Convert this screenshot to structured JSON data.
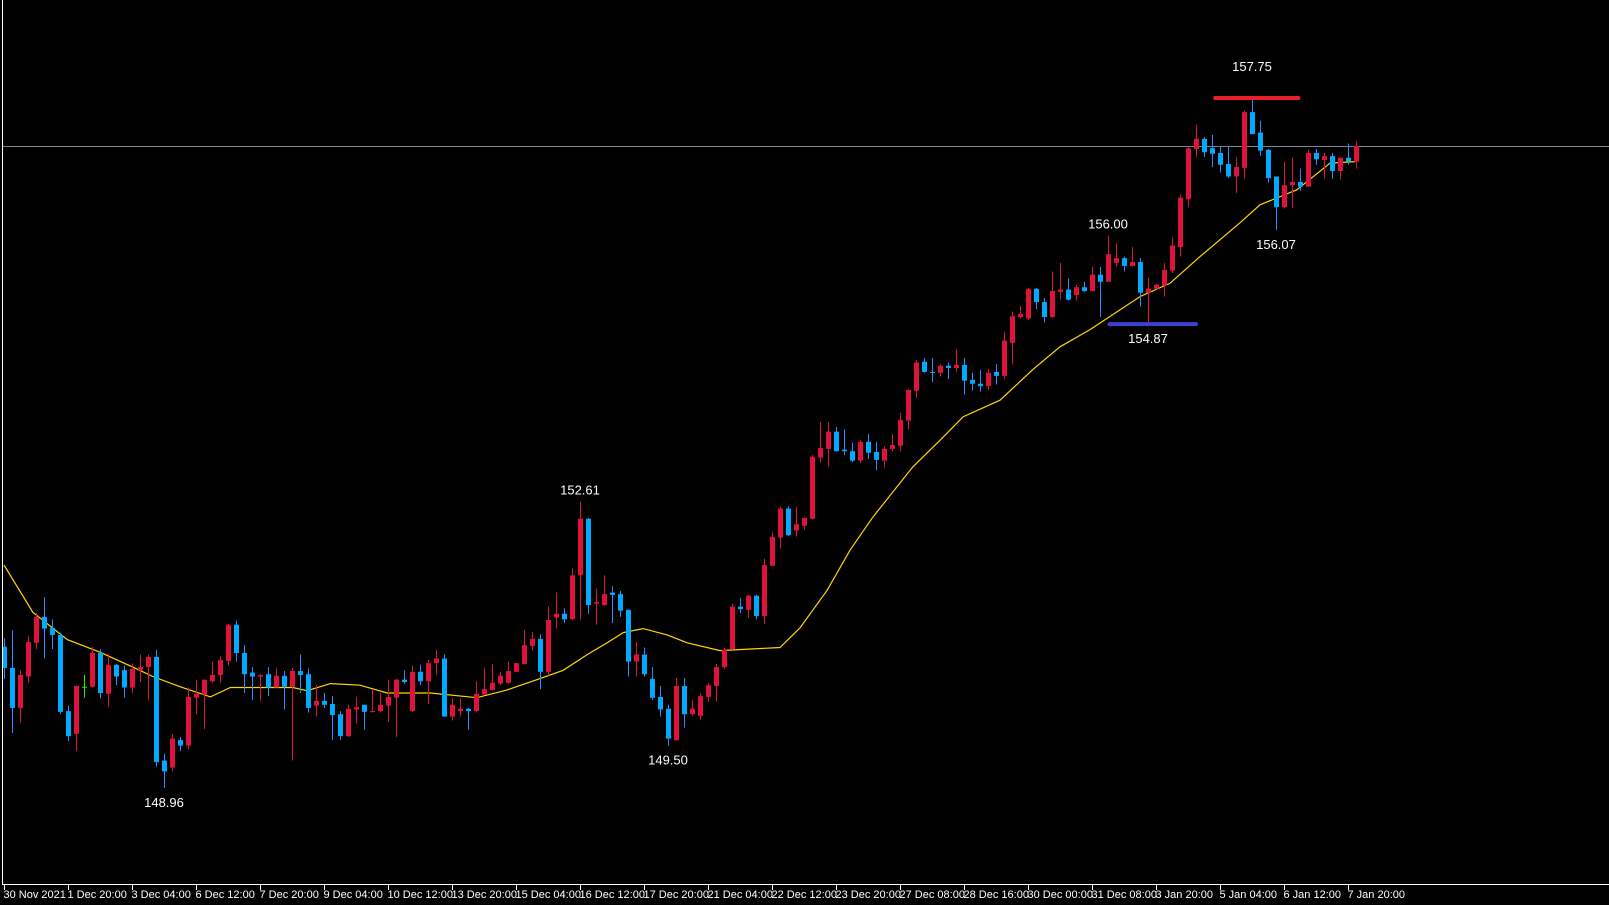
{
  "chart_data": {
    "type": "candlestick",
    "title": "",
    "xlabel": "",
    "ylabel": "",
    "ylim": [
      148.96,
      157.75
    ],
    "grid": false,
    "legend": "none",
    "colors": {
      "background": "#000000",
      "bull_body": "#dc143c",
      "bull_wick": "#dc143c",
      "bear_body": "#00aaff",
      "bear_wick": "#1e90ff",
      "doji": "#00ff00",
      "moving_average": "#ffd700",
      "bid_line": "#778899",
      "axis": "#ffffff",
      "text": "#ffffff",
      "high_marker": "#e8202a",
      "low_marker": "#3c3fd0"
    },
    "x_tick_labels": [
      "30 Nov 2021",
      "1 Dec 20:00",
      "3 Dec 04:00",
      "6 Dec 12:00",
      "7 Dec 20:00",
      "9 Dec 04:00",
      "10 Dec 12:00",
      "13 Dec 20:00",
      "15 Dec 04:00",
      "16 Dec 12:00",
      "17 Dec 20:00",
      "21 Dec 04:00",
      "22 Dec 12:00",
      "23 Dec 20:00",
      "27 Dec 08:00",
      "28 Dec 16:00",
      "30 Dec 00:00",
      "31 Dec 08:00",
      "3 Jan 20:00",
      "5 Jan 04:00",
      "6 Jan 12:00",
      "7 Jan 20:00"
    ],
    "x_tick_every_bars": 8,
    "bid_price": 157.14,
    "ohlc_fields": [
      "open",
      "high",
      "low",
      "close"
    ],
    "candles": [
      [
        150.76,
        150.87,
        150.35,
        150.49
      ],
      [
        150.49,
        150.97,
        149.66,
        149.98
      ],
      [
        149.98,
        150.46,
        149.79,
        150.4
      ],
      [
        150.38,
        150.9,
        150.3,
        150.82
      ],
      [
        150.81,
        151.19,
        150.73,
        151.14
      ],
      [
        151.14,
        151.39,
        150.61,
        150.99
      ],
      [
        151.0,
        151.11,
        150.73,
        150.91
      ],
      [
        150.91,
        150.94,
        149.9,
        149.93
      ],
      [
        149.94,
        150.01,
        149.56,
        149.62
      ],
      [
        149.65,
        150.27,
        149.43,
        150.26
      ],
      [
        150.25,
        150.4,
        150.11,
        150.25
      ],
      [
        150.25,
        150.76,
        150.24,
        150.68
      ],
      [
        150.68,
        150.73,
        150.1,
        150.17
      ],
      [
        150.16,
        150.67,
        149.99,
        150.53
      ],
      [
        150.53,
        150.54,
        150.27,
        150.38
      ],
      [
        150.46,
        150.52,
        150.11,
        150.24
      ],
      [
        150.24,
        150.55,
        150.17,
        150.48
      ],
      [
        150.46,
        150.66,
        150.31,
        150.5
      ],
      [
        150.5,
        150.66,
        150.08,
        150.63
      ],
      [
        150.63,
        150.72,
        149.23,
        149.29
      ],
      [
        149.31,
        149.4,
        148.96,
        149.17
      ],
      [
        149.22,
        149.65,
        149.17,
        149.59
      ],
      [
        149.57,
        149.61,
        149.43,
        149.5
      ],
      [
        149.5,
        150.24,
        149.45,
        150.12
      ],
      [
        150.11,
        150.34,
        149.9,
        150.16
      ],
      [
        150.15,
        150.34,
        149.71,
        150.34
      ],
      [
        150.32,
        150.57,
        150.3,
        150.4
      ],
      [
        150.4,
        150.64,
        150.3,
        150.59
      ],
      [
        150.58,
        151.05,
        150.52,
        151.04
      ],
      [
        151.04,
        151.09,
        150.57,
        150.68
      ],
      [
        150.68,
        150.78,
        150.17,
        150.41
      ],
      [
        150.43,
        150.5,
        150.08,
        150.38
      ],
      [
        150.38,
        150.41,
        150.07,
        150.4
      ],
      [
        150.41,
        150.5,
        150.13,
        150.24
      ],
      [
        150.24,
        150.49,
        150.24,
        150.39
      ],
      [
        150.39,
        150.45,
        149.96,
        150.25
      ],
      [
        150.25,
        150.49,
        149.31,
        150.45
      ],
      [
        150.45,
        150.66,
        150.17,
        150.4
      ],
      [
        150.41,
        150.48,
        149.92,
        149.98
      ],
      [
        150.01,
        150.27,
        149.87,
        150.07
      ],
      [
        150.07,
        150.17,
        149.98,
        150.02
      ],
      [
        150.03,
        150.13,
        149.57,
        149.89
      ],
      [
        149.9,
        149.94,
        149.57,
        149.62
      ],
      [
        149.62,
        150.02,
        149.61,
        149.97
      ],
      [
        149.96,
        150.12,
        149.78,
        149.99
      ],
      [
        150.02,
        150.02,
        149.7,
        149.93
      ],
      [
        149.93,
        150.22,
        149.92,
        149.94
      ],
      [
        149.94,
        150.17,
        149.92,
        150.02
      ],
      [
        150.01,
        150.34,
        149.8,
        150.12
      ],
      [
        150.11,
        150.35,
        149.61,
        150.34
      ],
      [
        150.34,
        150.46,
        150.29,
        150.31
      ],
      [
        149.94,
        150.52,
        149.93,
        150.44
      ],
      [
        150.44,
        150.53,
        150.27,
        150.32
      ],
      [
        150.32,
        150.59,
        150.03,
        150.55
      ],
      [
        150.55,
        150.72,
        150.4,
        150.61
      ],
      [
        150.61,
        150.66,
        149.87,
        149.87
      ],
      [
        149.87,
        150.1,
        149.82,
        150.02
      ],
      [
        149.94,
        150.1,
        149.87,
        149.97
      ],
      [
        149.97,
        149.98,
        149.7,
        149.94
      ],
      [
        149.94,
        150.32,
        149.92,
        150.16
      ],
      [
        150.15,
        150.49,
        150.15,
        150.22
      ],
      [
        150.21,
        150.54,
        150.2,
        150.3
      ],
      [
        150.29,
        150.44,
        150.27,
        150.39
      ],
      [
        150.3,
        150.57,
        150.29,
        150.45
      ],
      [
        150.44,
        150.55,
        150.44,
        150.55
      ],
      [
        150.54,
        150.97,
        150.53,
        150.78
      ],
      [
        150.77,
        150.95,
        150.71,
        150.86
      ],
      [
        150.86,
        150.92,
        150.22,
        150.44
      ],
      [
        150.44,
        151.27,
        150.39,
        151.1
      ],
      [
        151.13,
        151.45,
        150.99,
        151.18
      ],
      [
        151.18,
        151.25,
        151.06,
        151.11
      ],
      [
        151.11,
        151.76,
        151.1,
        151.67
      ],
      [
        151.67,
        152.61,
        151.1,
        152.39
      ],
      [
        152.39,
        152.4,
        151.18,
        151.29
      ],
      [
        151.31,
        151.5,
        151.04,
        151.33
      ],
      [
        151.29,
        151.67,
        151.28,
        151.43
      ],
      [
        151.45,
        151.53,
        151.06,
        151.42
      ],
      [
        151.43,
        151.47,
        151.14,
        151.22
      ],
      [
        151.23,
        151.23,
        150.38,
        150.57
      ],
      [
        150.57,
        150.82,
        150.38,
        150.66
      ],
      [
        150.66,
        150.75,
        150.38,
        150.41
      ],
      [
        150.35,
        150.5,
        150.08,
        150.11
      ],
      [
        150.12,
        150.26,
        149.87,
        149.96
      ],
      [
        149.97,
        150.02,
        149.5,
        149.59
      ],
      [
        149.57,
        150.36,
        149.56,
        150.26
      ],
      [
        150.26,
        150.36,
        149.73,
        149.9
      ],
      [
        149.9,
        150.08,
        149.88,
        149.97
      ],
      [
        149.88,
        150.17,
        149.83,
        150.13
      ],
      [
        150.12,
        150.3,
        150.06,
        150.27
      ],
      [
        150.26,
        150.54,
        150.06,
        150.5
      ],
      [
        150.5,
        150.75,
        150.47,
        150.72
      ],
      [
        150.73,
        151.31,
        150.72,
        151.27
      ],
      [
        151.27,
        151.38,
        151.19,
        151.24
      ],
      [
        151.23,
        151.42,
        151.13,
        151.41
      ],
      [
        151.41,
        151.42,
        151.11,
        151.15
      ],
      [
        151.15,
        151.88,
        151.05,
        151.8
      ],
      [
        151.79,
        152.22,
        151.79,
        152.16
      ],
      [
        152.15,
        152.55,
        152.01,
        152.52
      ],
      [
        152.52,
        152.55,
        152.17,
        152.18
      ],
      [
        152.24,
        152.54,
        152.16,
        152.32
      ],
      [
        152.3,
        152.41,
        152.25,
        152.4
      ],
      [
        152.39,
        153.2,
        152.38,
        153.18
      ],
      [
        153.17,
        153.62,
        153.11,
        153.29
      ],
      [
        153.28,
        153.62,
        153.05,
        153.5
      ],
      [
        153.5,
        153.56,
        153.25,
        153.25
      ],
      [
        153.27,
        153.53,
        153.2,
        153.25
      ],
      [
        153.25,
        153.36,
        153.11,
        153.13
      ],
      [
        153.13,
        153.39,
        153.1,
        153.37
      ],
      [
        153.37,
        153.47,
        153.15,
        153.23
      ],
      [
        153.24,
        153.37,
        153.01,
        153.14
      ],
      [
        153.13,
        153.31,
        153.04,
        153.28
      ],
      [
        153.28,
        153.47,
        153.25,
        153.33
      ],
      [
        153.32,
        153.74,
        153.25,
        153.65
      ],
      [
        153.64,
        154.04,
        153.53,
        154.03
      ],
      [
        154.02,
        154.41,
        153.93,
        154.38
      ],
      [
        154.39,
        154.44,
        154.25,
        154.26
      ],
      [
        154.26,
        154.44,
        154.13,
        154.25
      ],
      [
        154.25,
        154.36,
        154.2,
        154.34
      ],
      [
        154.34,
        154.38,
        154.17,
        154.31
      ],
      [
        154.31,
        154.55,
        154.26,
        154.35
      ],
      [
        154.35,
        154.44,
        153.97,
        154.15
      ],
      [
        154.16,
        154.25,
        154.02,
        154.11
      ],
      [
        154.11,
        154.29,
        154.01,
        154.08
      ],
      [
        154.08,
        154.3,
        154.03,
        154.25
      ],
      [
        154.26,
        154.36,
        154.1,
        154.21
      ],
      [
        154.21,
        154.77,
        154.17,
        154.66
      ],
      [
        154.63,
        155.03,
        154.36,
        154.97
      ],
      [
        154.96,
        155.1,
        154.94,
        155.0
      ],
      [
        154.94,
        155.33,
        154.92,
        155.32
      ],
      [
        155.32,
        155.33,
        155.06,
        155.15
      ],
      [
        155.15,
        155.2,
        154.89,
        154.96
      ],
      [
        154.96,
        155.54,
        154.95,
        155.29
      ],
      [
        155.28,
        155.65,
        155.18,
        155.31
      ],
      [
        155.31,
        155.45,
        155.17,
        155.18
      ],
      [
        155.24,
        155.37,
        155.17,
        155.34
      ],
      [
        155.34,
        155.41,
        155.28,
        155.29
      ],
      [
        155.29,
        155.6,
        155.29,
        155.5
      ],
      [
        155.5,
        155.6,
        154.96,
        155.41
      ],
      [
        155.41,
        156.0,
        155.41,
        155.76
      ],
      [
        155.65,
        155.9,
        155.6,
        155.71
      ],
      [
        155.71,
        155.73,
        155.54,
        155.61
      ],
      [
        155.61,
        155.85,
        155.6,
        155.66
      ],
      [
        155.66,
        155.71,
        155.09,
        155.27
      ],
      [
        155.27,
        155.46,
        154.87,
        155.32
      ],
      [
        155.32,
        155.38,
        155.31,
        155.37
      ],
      [
        155.36,
        155.65,
        155.22,
        155.56
      ],
      [
        155.55,
        155.98,
        155.52,
        155.87
      ],
      [
        155.85,
        156.52,
        155.73,
        156.48
      ],
      [
        156.46,
        157.13,
        156.36,
        157.11
      ],
      [
        157.1,
        157.41,
        157.0,
        157.23
      ],
      [
        157.23,
        157.25,
        157.0,
        157.06
      ],
      [
        157.11,
        157.28,
        156.87,
        157.04
      ],
      [
        157.05,
        157.13,
        156.8,
        156.9
      ],
      [
        156.91,
        157.13,
        156.73,
        156.75
      ],
      [
        156.75,
        157.0,
        156.54,
        156.87
      ],
      [
        156.86,
        157.59,
        156.72,
        157.57
      ],
      [
        157.57,
        157.75,
        157.29,
        157.29
      ],
      [
        157.31,
        157.46,
        157.01,
        157.08
      ],
      [
        157.09,
        157.1,
        156.67,
        156.73
      ],
      [
        156.75,
        156.75,
        156.07,
        156.36
      ],
      [
        156.36,
        156.94,
        156.34,
        156.64
      ],
      [
        156.64,
        156.99,
        156.35,
        156.68
      ],
      [
        156.68,
        156.85,
        156.57,
        156.62
      ],
      [
        156.62,
        157.09,
        156.62,
        157.05
      ],
      [
        157.05,
        157.1,
        156.9,
        156.97
      ],
      [
        156.96,
        157.05,
        156.72,
        157.01
      ],
      [
        157.01,
        157.05,
        156.72,
        156.82
      ],
      [
        156.82,
        156.99,
        156.71,
        156.99
      ],
      [
        156.99,
        157.17,
        156.9,
        156.94
      ],
      [
        156.94,
        157.2,
        156.85,
        157.14
      ]
    ],
    "moving_average": {
      "point_fields": [
        "bar_index",
        "price"
      ],
      "points": [
        [
          0,
          151.8
        ],
        [
          3.6,
          151.2
        ],
        [
          7.9,
          150.85
        ],
        [
          12,
          150.69
        ],
        [
          16.1,
          150.5
        ],
        [
          18.6,
          150.38
        ],
        [
          22,
          150.25
        ],
        [
          25.8,
          150.12
        ],
        [
          28.3,
          150.24
        ],
        [
          32.9,
          150.24
        ],
        [
          36.1,
          150.24
        ],
        [
          37.9,
          150.2
        ],
        [
          40.8,
          150.29
        ],
        [
          44.5,
          150.27
        ],
        [
          47.9,
          150.17
        ],
        [
          53.3,
          150.17
        ],
        [
          59.1,
          150.11
        ],
        [
          62.9,
          150.21
        ],
        [
          66.6,
          150.34
        ],
        [
          69.9,
          150.46
        ],
        [
          72.9,
          150.66
        ],
        [
          75.4,
          150.81
        ],
        [
          77.4,
          150.94
        ],
        [
          79.9,
          150.99
        ],
        [
          82.9,
          150.91
        ],
        [
          85.4,
          150.81
        ],
        [
          89.5,
          150.71
        ],
        [
          97,
          150.75
        ],
        [
          99.5,
          151.0
        ],
        [
          102.9,
          151.48
        ],
        [
          105.75,
          151.99
        ],
        [
          108.6,
          152.41
        ],
        [
          113.6,
          153.05
        ],
        [
          117,
          153.39
        ],
        [
          119.9,
          153.69
        ],
        [
          124.5,
          153.9
        ],
        [
          128.6,
          154.29
        ],
        [
          132,
          154.58
        ],
        [
          135.75,
          154.8
        ],
        [
          142,
          155.22
        ],
        [
          145.75,
          155.39
        ],
        [
          149.5,
          155.73
        ],
        [
          154.5,
          156.16
        ],
        [
          157,
          156.39
        ],
        [
          161.6,
          156.58
        ],
        [
          165.75,
          156.92
        ],
        [
          168.9,
          156.94
        ]
      ]
    },
    "annotations": [
      {
        "text": "157.75",
        "price": 157.75,
        "bar_index": 156,
        "kind": "high",
        "marker": {
          "from_bar": 151.4,
          "to_bar": 161.8,
          "color_key": "high_marker"
        }
      },
      {
        "text": "156.00",
        "price": 156.0,
        "bar_index": 138,
        "kind": "high"
      },
      {
        "text": "156.07",
        "price": 156.07,
        "bar_index": 159,
        "kind": "low"
      },
      {
        "text": "154.87",
        "price": 154.87,
        "bar_index": 143,
        "kind": "low",
        "marker": {
          "from_bar": 138.2,
          "to_bar": 149.0,
          "color_key": "low_marker"
        }
      },
      {
        "text": "152.61",
        "price": 152.61,
        "bar_index": 72,
        "kind": "high"
      },
      {
        "text": "149.50",
        "price": 149.5,
        "bar_index": 83,
        "kind": "low"
      },
      {
        "text": "148.96",
        "price": 148.96,
        "bar_index": 20,
        "kind": "low"
      }
    ]
  }
}
